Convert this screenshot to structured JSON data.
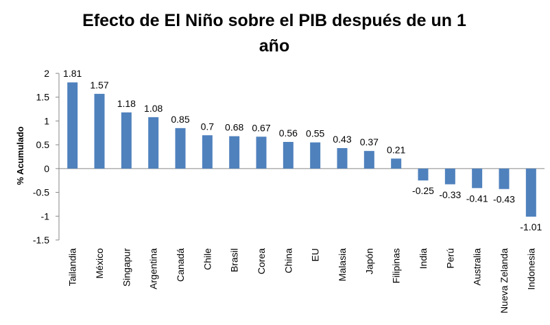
{
  "chart_data": {
    "type": "bar",
    "title_lines": [
      "Efecto de El Niño sobre el PIB después de un 1",
      "año"
    ],
    "xlabel": "",
    "ylabel": "% Acumulado",
    "ylim": [
      -1.5,
      2
    ],
    "yticks": [
      2,
      1.5,
      1,
      0.5,
      0,
      -0.5,
      -1,
      -1.5
    ],
    "ytick_labels": [
      "2",
      "1.5",
      "1",
      "0.5",
      "0",
      "-0.5",
      "-1",
      "-1.5"
    ],
    "categories": [
      "Tailandia",
      "México",
      "Singapur",
      "Argentina",
      "Canadá",
      "Chile",
      "Brasil",
      "Corea",
      "China",
      "EU",
      "Malasia",
      "Japón",
      "Filipinas",
      "India",
      "Perú",
      "Australia",
      "Nueva Zelanda",
      "Indonesia"
    ],
    "values": [
      1.81,
      1.57,
      1.18,
      1.08,
      0.85,
      0.7,
      0.68,
      0.67,
      0.56,
      0.55,
      0.43,
      0.37,
      0.21,
      -0.25,
      -0.33,
      -0.41,
      -0.43,
      -1.01
    ],
    "value_labels": [
      "1.81",
      "1.57",
      "1.18",
      "1.08",
      "0.85",
      "0.7",
      "0.68",
      "0.67",
      "0.56",
      "0.55",
      "0.43",
      "0.37",
      "0.21",
      "-0.25",
      "-0.33",
      "-0.41",
      "-0.43",
      "-1.01"
    ],
    "bar_color": "#4F81BD",
    "grid": false,
    "legend": "none"
  }
}
